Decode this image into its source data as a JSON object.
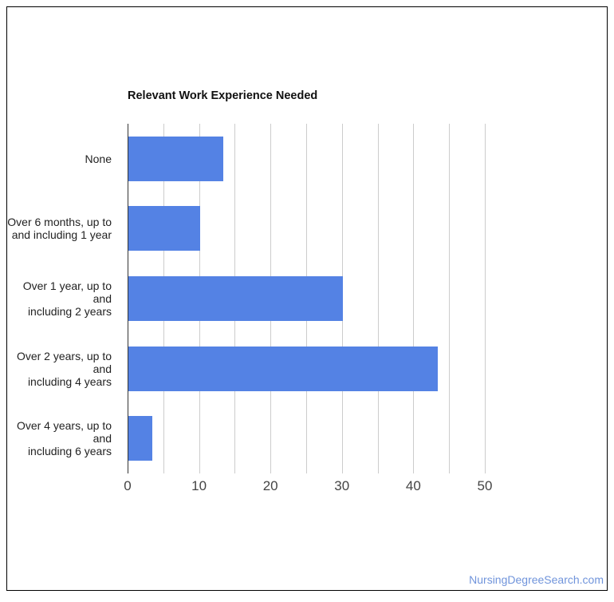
{
  "chart_data": {
    "type": "bar",
    "orientation": "horizontal",
    "title": "Relevant Work Experience Needed",
    "categories": [
      "None",
      "Over 6 months, up to and including 1 year",
      "Over 1 year, up to and including 2 years",
      "Over 2 years, up to and including 4 years",
      "Over 4 years, up to and including 6 years"
    ],
    "categories_wrapped": [
      [
        "None"
      ],
      [
        "Over 6 months, up to",
        "and including 1 year"
      ],
      [
        "Over 1 year, up to and",
        "including 2 years"
      ],
      [
        "Over 2 years, up to and",
        "including 4 years"
      ],
      [
        "Over 4 years, up to and",
        "including 6 years"
      ]
    ],
    "values": [
      13.3,
      10,
      30,
      43.3,
      3.3
    ],
    "x_ticks": [
      0,
      10,
      20,
      30,
      40,
      50
    ],
    "xlim": [
      0,
      55.25
    ],
    "gridline_step": 5,
    "grid": true,
    "legend": "none",
    "xlabel": "",
    "ylabel": "",
    "series_color": "#5482e4"
  },
  "style": {
    "gridline_color": "#cccccc",
    "baseline_color": "#333333",
    "tick_text_color": "#444444",
    "category_text_color": "#222222",
    "title_color": "#111111",
    "frame_border_color": "#000000",
    "watermark_color": "#7094db"
  },
  "watermark": {
    "label": "NursingDegreeSearch.com"
  }
}
